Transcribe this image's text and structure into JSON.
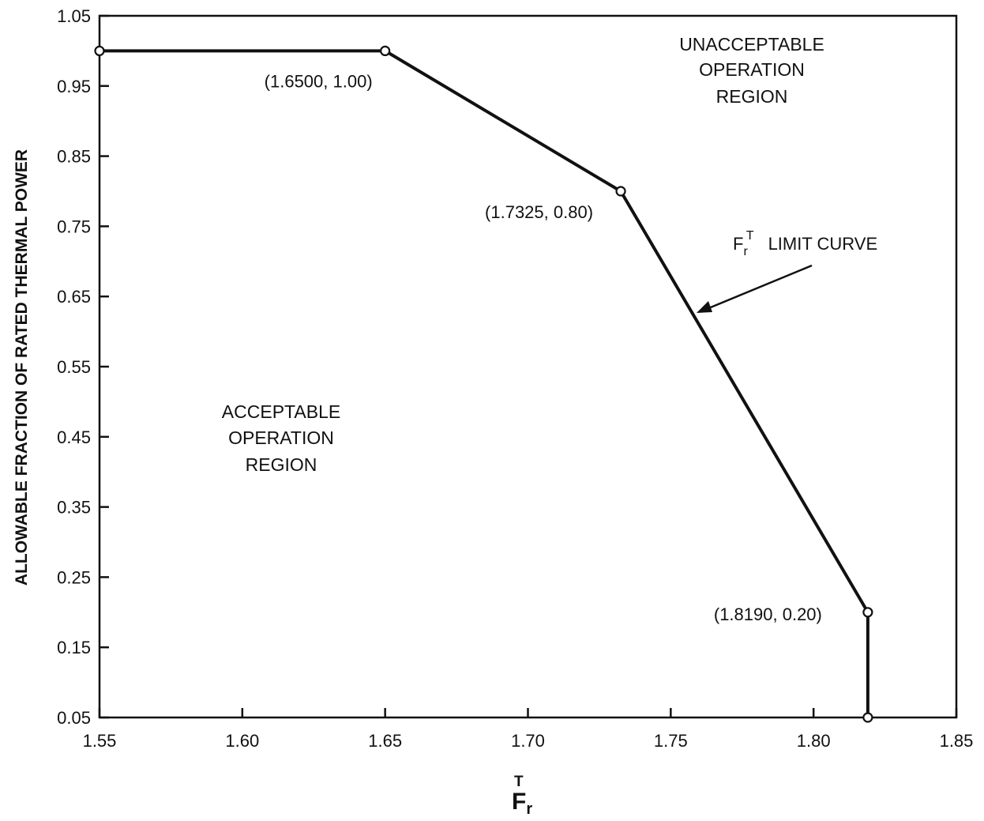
{
  "chart_data": {
    "type": "line",
    "xlabel": "F",
    "xlabel_sub": "r",
    "xlabel_sup": "T",
    "ylabel": "ALLOWABLE FRACTION OF RATED THERMAL POWER",
    "xlim": [
      1.55,
      1.85
    ],
    "ylim": [
      0.05,
      1.05
    ],
    "x_ticks": [
      "1.55",
      "1.60",
      "1.65",
      "1.70",
      "1.75",
      "1.80",
      "1.85"
    ],
    "x_tick_values": [
      1.55,
      1.6,
      1.65,
      1.7,
      1.75,
      1.8,
      1.85
    ],
    "y_ticks": [
      "1.05",
      "0.95",
      "0.85",
      "0.75",
      "0.65",
      "0.55",
      "0.45",
      "0.35",
      "0.25",
      "0.15",
      "0.05"
    ],
    "y_tick_values": [
      1.05,
      0.95,
      0.85,
      0.75,
      0.65,
      0.55,
      0.45,
      0.35,
      0.25,
      0.15,
      0.05
    ],
    "grid": false,
    "series": [
      {
        "x": [
          1.55,
          1.65,
          1.7325,
          1.819,
          1.819
        ],
        "y": [
          1.0,
          1.0,
          0.8,
          0.2,
          0.05
        ],
        "color": "#111111"
      }
    ],
    "point_labels": [
      {
        "text": "(1.6500, 1.00)",
        "x": 1.65,
        "y": 1.0
      },
      {
        "text": "(1.7325, 0.80)",
        "x": 1.7325,
        "y": 0.8
      },
      {
        "text": "(1.8190, 0.20)",
        "x": 1.819,
        "y": 0.2
      }
    ],
    "annotations": {
      "unacceptable_region": [
        "UNACCEPTABLE",
        "OPERATION",
        "REGION"
      ],
      "acceptable_region": [
        "ACCEPTABLE",
        "OPERATION",
        "REGION"
      ],
      "limit_curve": {
        "main": "F",
        "sub": "r",
        "sup": "T",
        "rest": "LIMIT CURVE"
      }
    }
  }
}
